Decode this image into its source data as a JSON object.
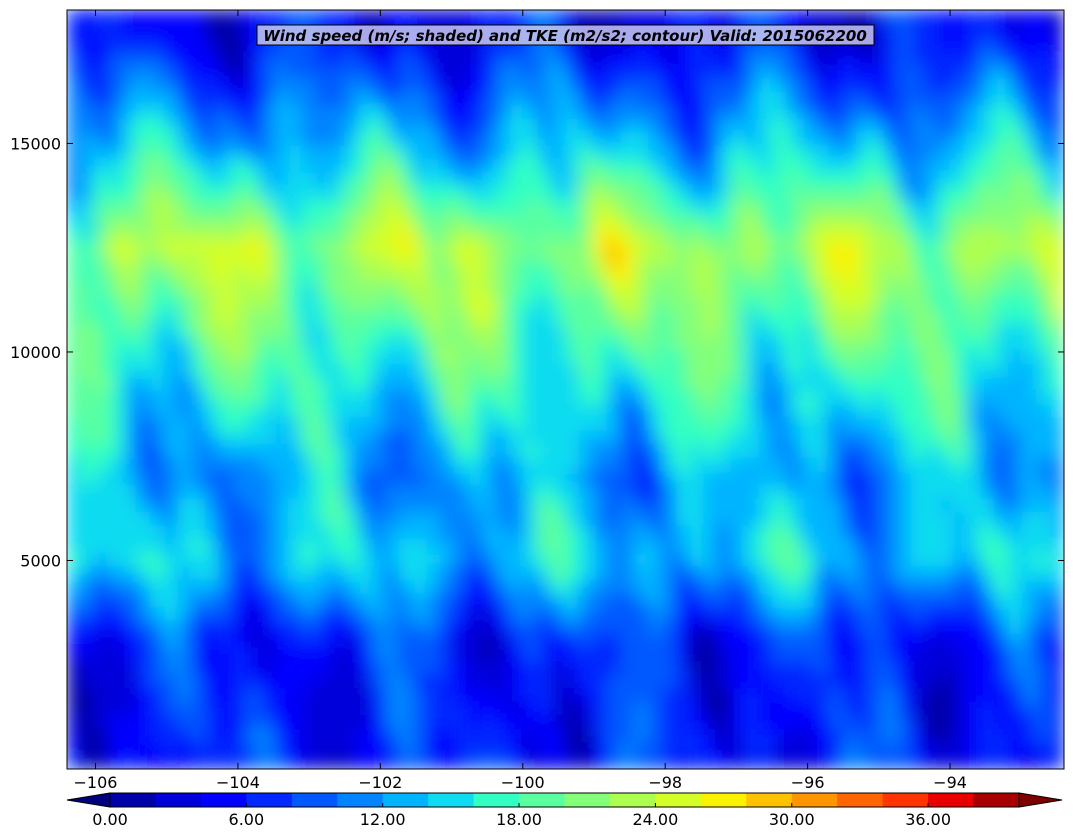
{
  "chart_data": {
    "type": "heatmap",
    "title": "Wind speed (m/s; shaded) and TKE (m2/s2; contour) Valid: 2015062200",
    "xlabel": "",
    "ylabel": "",
    "xlim": [
      -106.4,
      -92.4
    ],
    "ylim": [
      0,
      18200
    ],
    "x_ticks": [
      -106,
      -104,
      -102,
      -100,
      -98,
      -96,
      -94
    ],
    "x_tick_labels": [
      "−106",
      "−104",
      "−102",
      "−100",
      "−98",
      "−96",
      "−94"
    ],
    "y_ticks": [
      5000,
      10000,
      15000
    ],
    "y_tick_labels": [
      "5000",
      "10000",
      "15000"
    ],
    "colorbar": {
      "levels": [
        0,
        2,
        4,
        6,
        8,
        10,
        12,
        14,
        16,
        18,
        20,
        22,
        24,
        26,
        28,
        30,
        32,
        34,
        36,
        38,
        40
      ],
      "tick_values": [
        0,
        6,
        12,
        18,
        24,
        30,
        36
      ],
      "tick_labels": [
        "0.00",
        "6.00",
        "12.00",
        "18.00",
        "24.00",
        "30.00",
        "36.00"
      ],
      "extend": "both",
      "colors": [
        "#00007f",
        "#0000a8",
        "#0000da",
        "#0000ff",
        "#0028ff",
        "#0058ff",
        "#0084ff",
        "#00b4ff",
        "#0ddcf0",
        "#33ffc3",
        "#5affa0",
        "#84ff7a",
        "#adff50",
        "#d4ff28",
        "#fbf200",
        "#ffc200",
        "#ff9500",
        "#ff6500",
        "#ff3400",
        "#e80000",
        "#a80000",
        "#7f0000"
      ]
    },
    "wind_profile_mps": [
      {
        "height": 300,
        "value": 6
      },
      {
        "height": 3000,
        "value": 6
      },
      {
        "height": 5000,
        "value": 14
      },
      {
        "height": 7000,
        "value": 12
      },
      {
        "height": 10000,
        "value": 18
      },
      {
        "height": 12500,
        "value": 23
      },
      {
        "height": 15000,
        "value": 13
      },
      {
        "height": 17500,
        "value": 5
      }
    ],
    "wind_max_mps": 30
  }
}
